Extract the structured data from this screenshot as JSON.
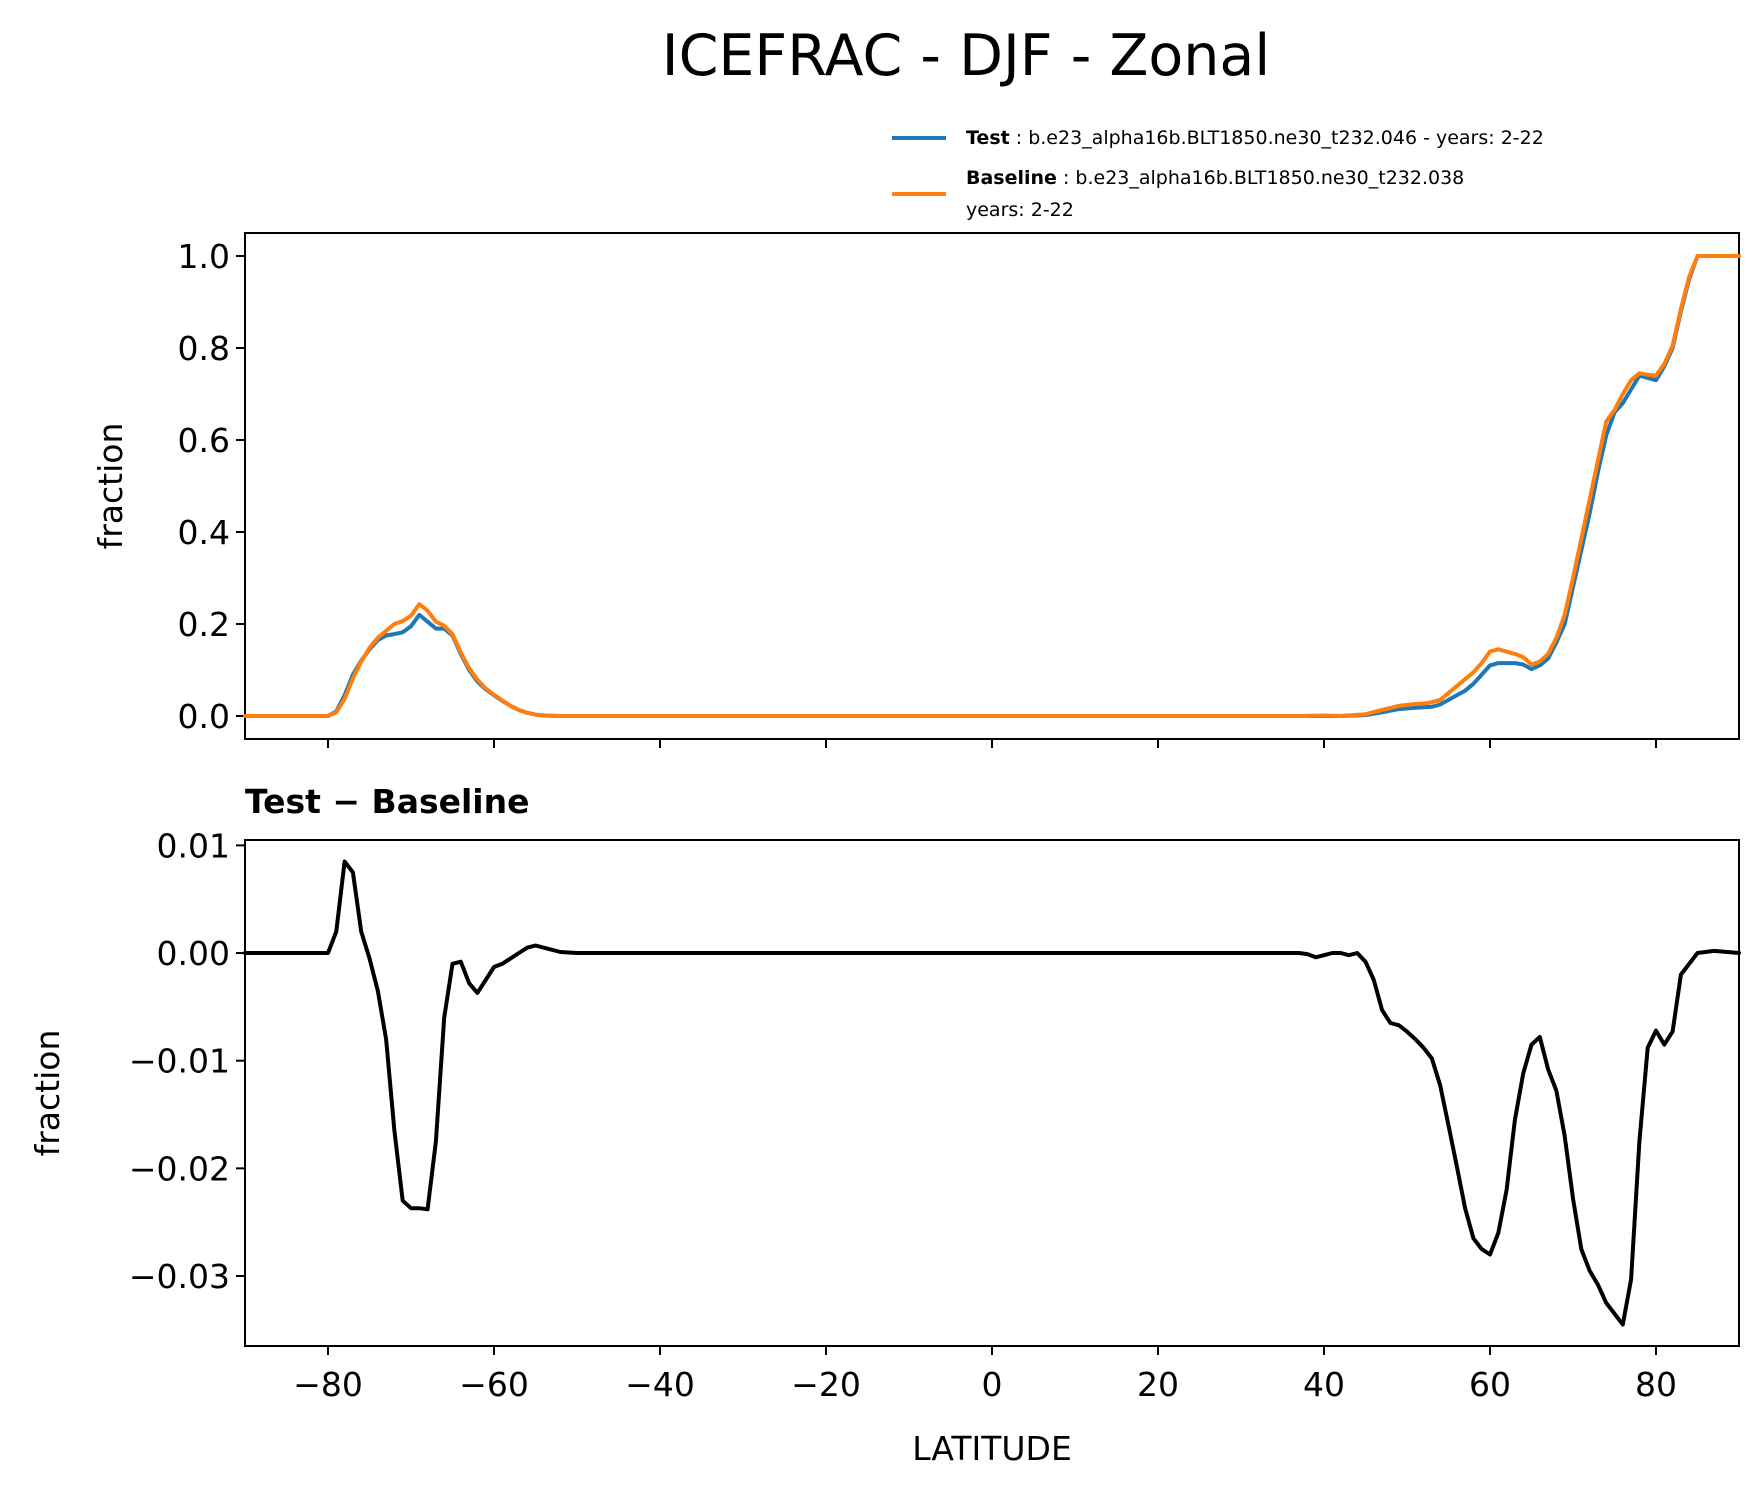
{
  "figure_title": "ICEFRAC - DJF - Zonal",
  "legend": {
    "test_label": "Test",
    "test_text": "b.e23_alpha16b.BLT1850.ne30_t232.046 - years: 2-22",
    "baseline_label": "Baseline",
    "baseline_text": "b.e23_alpha16b.BLT1850.ne30_t232.038",
    "baseline_text2": "years: 2-22"
  },
  "colors": {
    "test": "#1f77b4",
    "baseline": "#ff7f0e",
    "diff": "#000000"
  },
  "chart_data": [
    {
      "type": "line",
      "title": "",
      "xlabel": "",
      "ylabel": "fraction",
      "xlim": [
        -90,
        90
      ],
      "ylim": [
        -0.05,
        1.05
      ],
      "x_ticks": [
        -80,
        -60,
        -40,
        -20,
        0,
        20,
        40,
        60,
        80
      ],
      "y_ticks": [
        0.0,
        0.2,
        0.4,
        0.6,
        0.8,
        1.0
      ],
      "y_tick_labels": [
        "0.0",
        "0.2",
        "0.4",
        "0.6",
        "0.8",
        "1.0"
      ],
      "grid": false,
      "legend_position": "above-right",
      "series": [
        {
          "name": "Test",
          "color": "#1f77b4",
          "x": [
            -90,
            -80,
            -79,
            -78,
            -77,
            -76,
            -75,
            -74,
            -73,
            -72,
            -71,
            -70,
            -69,
            -68,
            -67,
            -66,
            -65,
            -64,
            -63,
            -62,
            -61,
            -60,
            -59,
            -58,
            -57,
            -56,
            -55,
            -54,
            -52,
            -50,
            37,
            40,
            42,
            45,
            47,
            49,
            51,
            52,
            53,
            54,
            55,
            56,
            57,
            58,
            59,
            60,
            61,
            62,
            63,
            64,
            65,
            66,
            67,
            68,
            69,
            70,
            71,
            72,
            73,
            74,
            75,
            76,
            77,
            78,
            79,
            80,
            81,
            82,
            83,
            84,
            85,
            86,
            90
          ],
          "values": [
            0.0,
            0.0,
            0.01,
            0.045,
            0.09,
            0.12,
            0.145,
            0.165,
            0.175,
            0.178,
            0.182,
            0.195,
            0.22,
            0.205,
            0.19,
            0.19,
            0.175,
            0.135,
            0.1,
            0.075,
            0.058,
            0.045,
            0.033,
            0.022,
            0.013,
            0.007,
            0.003,
            0.001,
            0.0,
            0.0,
            0.0,
            0.0,
            0.0,
            0.002,
            0.008,
            0.015,
            0.018,
            0.019,
            0.02,
            0.025,
            0.035,
            0.045,
            0.055,
            0.07,
            0.09,
            0.11,
            0.115,
            0.115,
            0.115,
            0.112,
            0.102,
            0.11,
            0.125,
            0.16,
            0.2,
            0.28,
            0.36,
            0.44,
            0.53,
            0.61,
            0.66,
            0.68,
            0.71,
            0.74,
            0.735,
            0.73,
            0.76,
            0.8,
            0.88,
            0.95,
            1.0,
            1.0,
            1.0
          ]
        },
        {
          "name": "Baseline",
          "color": "#ff7f0e",
          "x": [
            -90,
            -80,
            -79,
            -78,
            -77,
            -76,
            -75,
            -74,
            -73,
            -72,
            -71,
            -70,
            -69,
            -68,
            -67,
            -66,
            -65,
            -64,
            -63,
            -62,
            -61,
            -60,
            -59,
            -58,
            -57,
            -56,
            -55,
            -54,
            -52,
            -50,
            37,
            40,
            42,
            45,
            47,
            49,
            51,
            52,
            53,
            54,
            55,
            56,
            57,
            58,
            59,
            60,
            61,
            62,
            63,
            64,
            65,
            66,
            67,
            68,
            69,
            70,
            71,
            72,
            73,
            74,
            75,
            76,
            77,
            78,
            79,
            80,
            81,
            82,
            83,
            84,
            85,
            86,
            90
          ],
          "values": [
            0.0,
            0.0,
            0.008,
            0.037,
            0.082,
            0.118,
            0.148,
            0.17,
            0.185,
            0.2,
            0.206,
            0.218,
            0.243,
            0.229,
            0.205,
            0.196,
            0.178,
            0.138,
            0.104,
            0.079,
            0.06,
            0.046,
            0.034,
            0.022,
            0.013,
            0.007,
            0.003,
            0.001,
            0.0,
            0.0,
            0.0,
            0.001,
            0.0,
            0.004,
            0.013,
            0.022,
            0.026,
            0.027,
            0.03,
            0.035,
            0.05,
            0.065,
            0.08,
            0.095,
            0.115,
            0.14,
            0.145,
            0.14,
            0.135,
            0.128,
            0.112,
            0.118,
            0.135,
            0.17,
            0.22,
            0.3,
            0.385,
            0.47,
            0.555,
            0.64,
            0.665,
            0.7,
            0.73,
            0.745,
            0.742,
            0.74,
            0.765,
            0.805,
            0.885,
            0.955,
            1.0,
            1.0,
            1.0
          ]
        }
      ]
    },
    {
      "type": "line",
      "title": "Test − Baseline",
      "xlabel": "LATITUDE",
      "ylabel": "fraction",
      "xlim": [
        -90,
        90
      ],
      "ylim": [
        -0.0365,
        0.0105
      ],
      "x_ticks": [
        -80,
        -60,
        -40,
        -20,
        0,
        20,
        40,
        60,
        80
      ],
      "x_tick_labels": [
        "−80",
        "−60",
        "−40",
        "−20",
        "0",
        "20",
        "40",
        "60",
        "80"
      ],
      "y_ticks": [
        0.01,
        0.0,
        -0.01,
        -0.02,
        -0.03
      ],
      "y_tick_labels": [
        "0.01",
        "0.00",
        "−0.01",
        "−0.02",
        "−0.03"
      ],
      "grid": false,
      "series": [
        {
          "color": "#000000",
          "x": [
            -90,
            -80,
            -79,
            -78,
            -77,
            -76,
            -75,
            -74,
            -73,
            -72,
            -71,
            -70,
            -69,
            -68,
            -67,
            -66,
            -65,
            -64,
            -63,
            -62,
            -61,
            -60,
            -59,
            -58,
            -57,
            -56,
            -55,
            -54,
            -52,
            -50,
            37,
            38,
            39,
            40,
            41,
            42,
            43,
            44,
            45,
            46,
            47,
            48,
            49,
            50,
            51,
            52,
            53,
            54,
            55,
            56,
            57,
            58,
            59,
            60,
            61,
            62,
            63,
            64,
            65,
            66,
            67,
            68,
            69,
            70,
            71,
            72,
            73,
            74,
            75,
            76,
            77,
            78,
            79,
            80,
            81,
            82,
            83,
            85,
            87,
            90
          ],
          "values": [
            0.0,
            0.0,
            0.002,
            0.0085,
            0.0075,
            0.002,
            -0.0005,
            -0.0035,
            -0.008,
            -0.0165,
            -0.023,
            -0.0237,
            -0.0237,
            -0.0238,
            -0.0175,
            -0.006,
            -0.001,
            -0.0008,
            -0.0028,
            -0.0037,
            -0.0025,
            -0.0013,
            -0.001,
            -0.0005,
            0.0,
            0.0005,
            0.0007,
            0.0005,
            0.0001,
            0.0,
            0.0,
            -0.0001,
            -0.0004,
            -0.0002,
            0.0,
            0.0,
            -0.0002,
            0.0,
            -0.0008,
            -0.0025,
            -0.0053,
            -0.0065,
            -0.0067,
            -0.0073,
            -0.008,
            -0.0088,
            -0.0098,
            -0.0123,
            -0.016,
            -0.0198,
            -0.0237,
            -0.0265,
            -0.0275,
            -0.028,
            -0.026,
            -0.022,
            -0.0155,
            -0.0112,
            -0.0085,
            -0.0078,
            -0.0108,
            -0.0128,
            -0.017,
            -0.0228,
            -0.0275,
            -0.0295,
            -0.0308,
            -0.0325,
            -0.0335,
            -0.0345,
            -0.0303,
            -0.0175,
            -0.0088,
            -0.0072,
            -0.0085,
            -0.0073,
            -0.002,
            0.0,
            0.0002,
            0.0
          ]
        }
      ]
    }
  ]
}
